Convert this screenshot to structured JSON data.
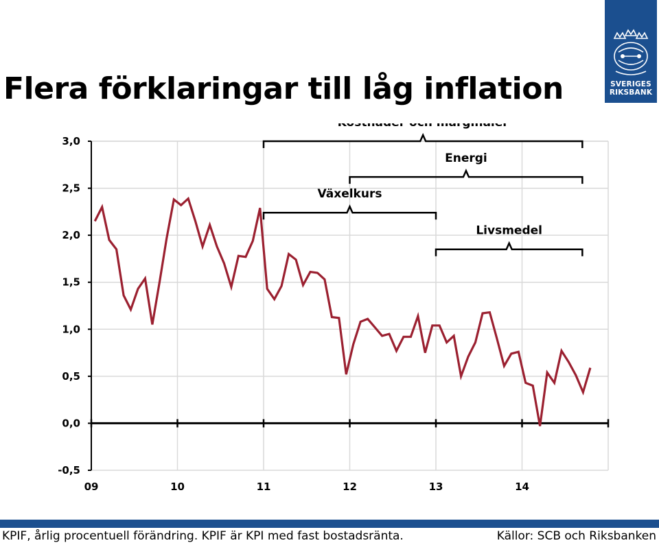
{
  "title": "Flera förklaringar till låg inflation",
  "logo": {
    "line1": "SVERIGES",
    "line2": "RIKSBANK",
    "icon": "riksbank-crest-icon"
  },
  "footer": {
    "note": "KPIF, årlig procentuell förändring. KPIF är KPI med fast bostadsränta.",
    "source": "Källor: SCB och Riksbanken"
  },
  "colors": {
    "line": "#9b2030",
    "brand": "#1b4f8f",
    "grid": "#d9d9d9"
  },
  "chart_data": {
    "type": "line",
    "title": "",
    "xlabel": "",
    "ylabel": "",
    "ylim": [
      -0.5,
      3.0
    ],
    "yticks": [
      "3,0",
      "2,5",
      "2,0",
      "1,5",
      "1,0",
      "0,5",
      "0,0",
      "-0,5"
    ],
    "ytick_values": [
      3.0,
      2.5,
      2.0,
      1.5,
      1.0,
      0.5,
      0.0,
      -0.5
    ],
    "xlim": [
      2009.0,
      2015.0
    ],
    "xticks": [
      "09",
      "10",
      "11",
      "12",
      "13",
      "14"
    ],
    "xtick_values": [
      2009,
      2010,
      2011,
      2012,
      2013,
      2014
    ],
    "grid": true,
    "series": [
      {
        "name": "",
        "start": [
          2009,
          1
        ],
        "frequency": "monthly",
        "values": [
          2.15,
          2.3,
          1.95,
          1.85,
          1.36,
          1.21,
          1.43,
          1.54,
          1.05,
          1.5,
          1.97,
          2.38,
          2.32,
          2.39,
          2.15,
          1.88,
          2.11,
          1.88,
          1.7,
          1.45,
          1.78,
          1.77,
          1.94,
          2.29,
          1.43,
          1.32,
          1.46,
          1.8,
          1.74,
          1.47,
          1.61,
          1.6,
          1.53,
          1.13,
          1.12,
          0.52,
          0.84,
          1.08,
          1.11,
          1.02,
          0.93,
          0.95,
          0.77,
          0.92,
          0.92,
          1.14,
          0.75,
          1.04,
          1.04,
          0.86,
          0.93,
          0.5,
          0.71,
          0.86,
          1.17,
          1.18,
          0.9,
          0.61,
          0.74,
          0.76,
          0.43,
          0.4,
          -0.03,
          0.54,
          0.43,
          0.77,
          0.65,
          0.51,
          0.33,
          0.59
        ]
      }
    ],
    "annotations": [
      {
        "label": "Kostnader och marginaler",
        "from": 2011.0,
        "to": 2014.7,
        "level": 3.0
      },
      {
        "label": "Energi",
        "from": 2012.0,
        "to": 2014.7,
        "level": 2.62
      },
      {
        "label": "Växelkurs",
        "from": 2011.0,
        "to": 2013.0,
        "level": 2.24
      },
      {
        "label": "Livsmedel",
        "from": 2013.0,
        "to": 2014.7,
        "level": 1.85
      }
    ]
  }
}
